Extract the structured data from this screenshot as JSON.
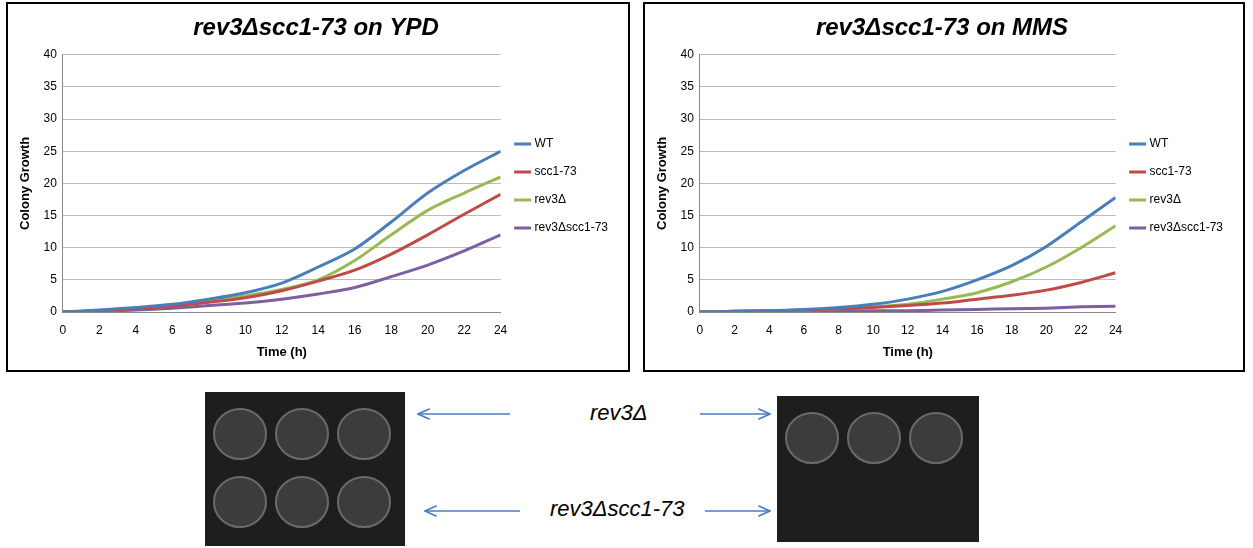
{
  "chart_data": [
    {
      "type": "line",
      "title": "rev3Δscc1-73 on YPD",
      "x_label": "Time (h)",
      "y_label": "Colony Growth",
      "x": [
        0,
        2,
        4,
        6,
        8,
        10,
        12,
        14,
        16,
        18,
        20,
        22,
        24
      ],
      "series": [
        {
          "name": "WT",
          "color": "#4a7ebb",
          "values": [
            0,
            0.3,
            0.7,
            1.2,
            2,
            3,
            4.5,
            7,
            9.8,
            14,
            18.5,
            22,
            25
          ]
        },
        {
          "name": "scc1-73",
          "color": "#be4b48",
          "values": [
            0,
            0.2,
            0.5,
            0.9,
            1.5,
            2.2,
            3.3,
            4.8,
            6.5,
            9,
            12,
            15.2,
            18.3
          ]
        },
        {
          "name": "rev3Δ",
          "color": "#98b954",
          "values": [
            0,
            0.2,
            0.6,
            1,
            1.7,
            2.5,
            3.5,
            5,
            8,
            12,
            15.8,
            18.5,
            21
          ]
        },
        {
          "name": "rev3Δscc1-73",
          "color": "#7d60a0",
          "values": [
            0,
            0.1,
            0.3,
            0.6,
            1,
            1.4,
            2,
            2.8,
            3.8,
            5.5,
            7.3,
            9.5,
            12
          ]
        }
      ],
      "xlim": [
        0,
        24
      ],
      "xticks": [
        0,
        2,
        4,
        6,
        8,
        10,
        12,
        14,
        16,
        18,
        20,
        22,
        24
      ],
      "ylim": [
        0,
        40
      ],
      "yticks": [
        0,
        5,
        10,
        15,
        20,
        25,
        30,
        35,
        40
      ],
      "grid": true,
      "legend": "right"
    },
    {
      "type": "line",
      "title": "rev3Δscc1-73 on MMS",
      "x_label": "Time (h)",
      "y_label": "Colony Growth",
      "x": [
        0,
        2,
        4,
        6,
        8,
        10,
        12,
        14,
        16,
        18,
        20,
        22,
        24
      ],
      "series": [
        {
          "name": "WT",
          "color": "#4a7ebb",
          "values": [
            0,
            0.1,
            0.2,
            0.4,
            0.7,
            1.2,
            2,
            3.2,
            5,
            7.2,
            10.2,
            14,
            17.8
          ]
        },
        {
          "name": "scc1-73",
          "color": "#be4b48",
          "values": [
            0,
            0.1,
            0.2,
            0.3,
            0.5,
            0.7,
            1,
            1.4,
            2,
            2.6,
            3.4,
            4.6,
            6.1
          ]
        },
        {
          "name": "rev3Δ",
          "color": "#98b954",
          "values": [
            0,
            0.1,
            0.2,
            0.3,
            0.5,
            0.8,
            1.2,
            2,
            3,
            4.7,
            7,
            10,
            13.4
          ]
        },
        {
          "name": "rev3Δscc1-73",
          "color": "#7d60a0",
          "values": [
            0,
            0,
            0.1,
            0.1,
            0.1,
            0.2,
            0.2,
            0.3,
            0.4,
            0.5,
            0.6,
            0.8,
            0.9
          ]
        }
      ],
      "xlim": [
        0,
        24
      ],
      "xticks": [
        0,
        2,
        4,
        6,
        8,
        10,
        12,
        14,
        16,
        18,
        20,
        22,
        24
      ],
      "ylim": [
        0,
        40
      ],
      "yticks": [
        0,
        5,
        10,
        15,
        20,
        25,
        30,
        35,
        40
      ],
      "grid": true,
      "legend": "right"
    }
  ],
  "photo_labels": {
    "top_row": "rev3Δ",
    "bottom_row": "rev3Δscc1-73"
  }
}
